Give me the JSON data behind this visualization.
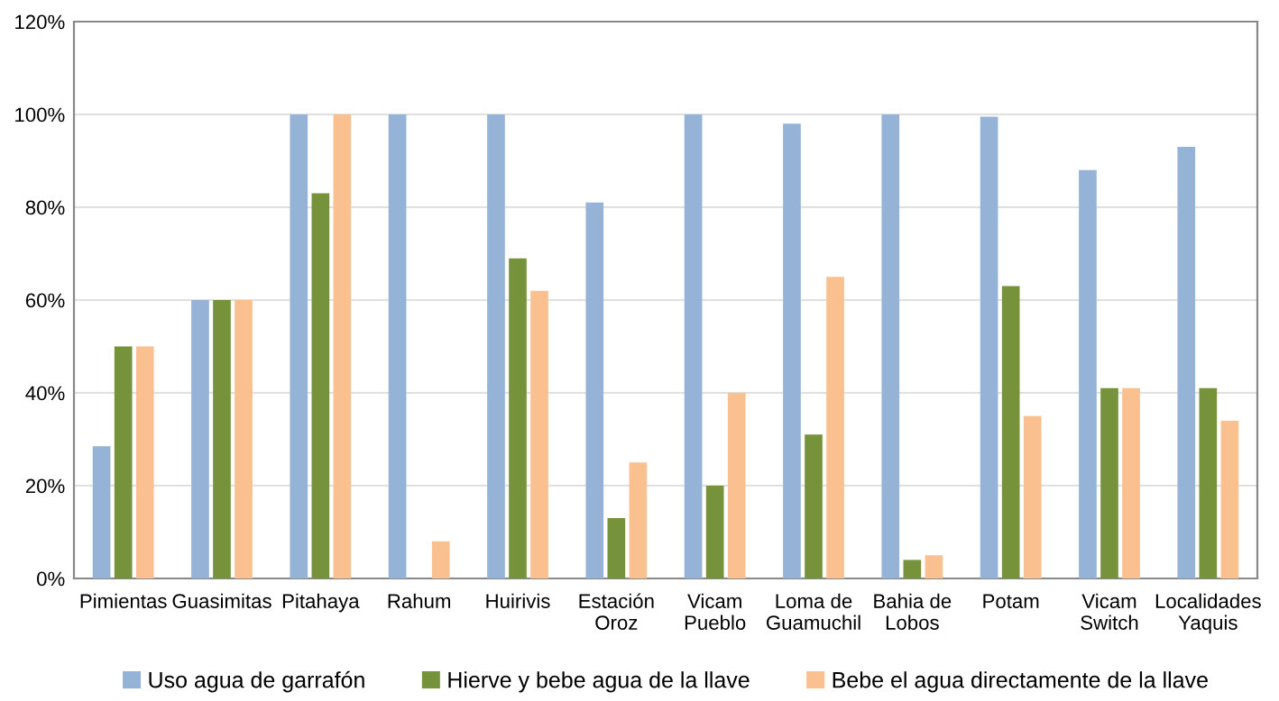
{
  "chart_data": {
    "type": "bar",
    "categories": [
      "Pimientas",
      "Guasimitas",
      "Pitahaya",
      "Rahum",
      "Huirivis",
      "Estación\nOroz",
      "Vicam\nPueblo",
      "Loma de\nGuamuchil",
      "Bahia de\nLobos",
      "Potam",
      "Vicam\nSwitch",
      "Localidades\nYaquis"
    ],
    "series": [
      {
        "name": "Uso agua de garrafón",
        "color": "#95b3d7",
        "values": [
          28.5,
          60,
          100,
          100,
          100,
          81,
          100,
          98,
          100,
          99.5,
          88,
          93
        ]
      },
      {
        "name": "Hierve y bebe agua de la llave",
        "color": "#76933c",
        "values": [
          50,
          60,
          83,
          0,
          69,
          13,
          20,
          31,
          4,
          63,
          41,
          41
        ]
      },
      {
        "name": "Bebe el agua directamente de la llave",
        "color": "#fac090",
        "values": [
          50,
          60,
          100,
          8,
          62,
          25,
          40,
          65,
          5,
          35,
          41,
          34
        ]
      }
    ],
    "ylim": [
      0,
      120
    ],
    "yticks": [
      {
        "value": 0,
        "label": "0%"
      },
      {
        "value": 20,
        "label": "20%"
      },
      {
        "value": 40,
        "label": "40%"
      },
      {
        "value": 60,
        "label": "60%"
      },
      {
        "value": 80,
        "label": "80%"
      },
      {
        "value": 100,
        "label": "100%"
      },
      {
        "value": 120,
        "label": "120%"
      }
    ],
    "grid": "y",
    "legend": "bottom"
  }
}
